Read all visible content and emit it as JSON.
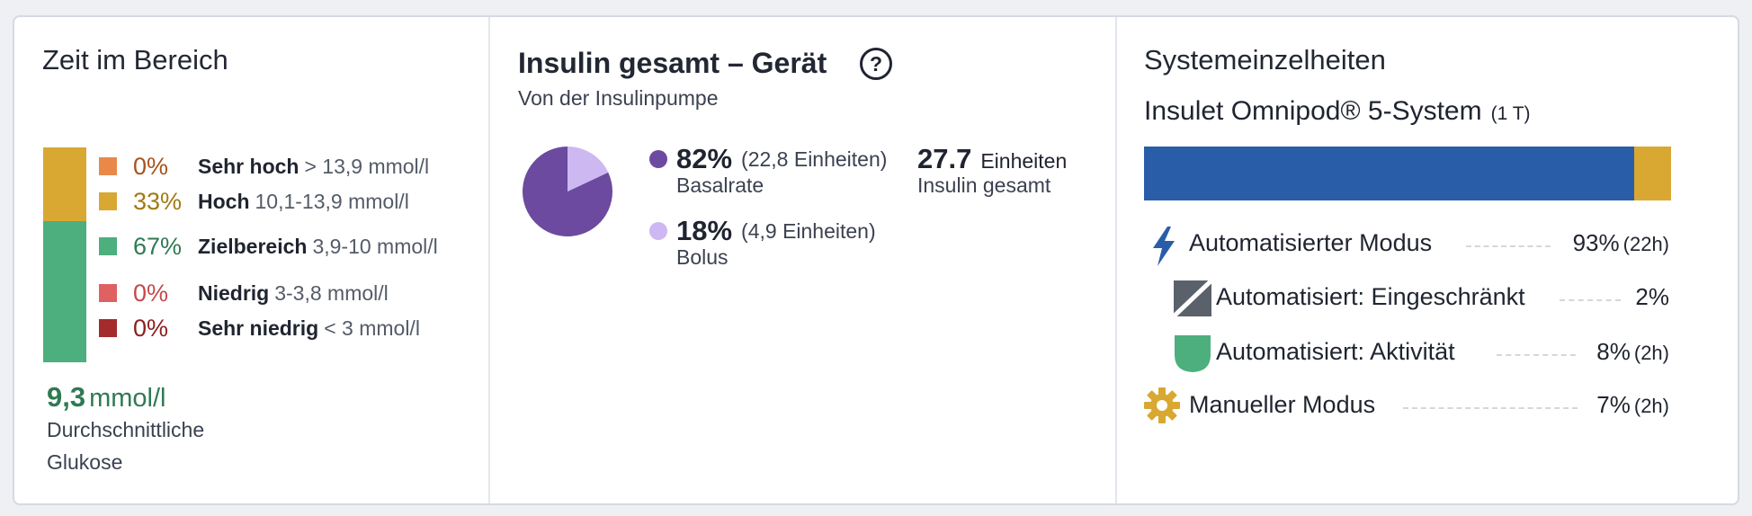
{
  "tir": {
    "title": "Zeit im Bereich",
    "rows": [
      {
        "pct": "0%",
        "label": "Sehr hoch",
        "range": "> 13,9 mmol/l",
        "color": "#e8894a",
        "text_color": "#a9521e"
      },
      {
        "pct": "33%",
        "label": "Hoch",
        "range": "10,1-13,9 mmol/l",
        "color": "#d9a832",
        "text_color": "#a27a12"
      },
      {
        "pct": "67%",
        "label": "Zielbereich",
        "range": "3,9-10 mmol/l",
        "color": "#4caf7d",
        "text_color": "#2f7a53"
      },
      {
        "pct": "0%",
        "label": "Niedrig",
        "range": "3-3,8 mmol/l",
        "color": "#e06161",
        "text_color": "#c44a4a"
      },
      {
        "pct": "0%",
        "label": "Sehr niedrig",
        "range": "< 3 mmol/l",
        "color": "#a32b2b",
        "text_color": "#8b1f1f"
      }
    ],
    "avg_value": "9,3",
    "avg_unit": "mmol/l",
    "avg_caption_1": "Durchschnittliche",
    "avg_caption_2": "Glukose"
  },
  "insulin": {
    "title": "Insulin gesamt – Gerät",
    "subtitle": "Von der Insulinpumpe",
    "help_glyph": "?",
    "basal": {
      "pct": "82%",
      "units": "(22,8 Einheiten)",
      "label": "Basalrate",
      "color": "#6c4aa0"
    },
    "bolus": {
      "pct": "18%",
      "units": "(4,9 Einheiten)",
      "label": "Bolus",
      "color": "#cdb8f2"
    },
    "total_value": "27.7",
    "total_unit": "Einheiten",
    "total_label": "Insulin gesamt"
  },
  "chart_data": {
    "type": "pie",
    "categories": [
      "Basalrate",
      "Bolus"
    ],
    "values": [
      82,
      18
    ],
    "title": ""
  },
  "system": {
    "title": "Systemeinzelheiten",
    "device": "Insulet Omnipod® 5-System",
    "days": "(1 T)",
    "bar": {
      "auto_fraction": 0.93,
      "auto_color": "#2a5da8",
      "manual_color": "#d9a832"
    },
    "modes": [
      {
        "icon": "lightning-bolt-icon",
        "label": "Automatisierter Modus",
        "pct": "93%",
        "hours": "(22h)"
      },
      {
        "icon": "limited-square-icon",
        "label": "Automatisiert: Eingeschränkt",
        "pct": "2%",
        "hours": ""
      },
      {
        "icon": "shield-icon",
        "label": "Automatisiert: Aktivität",
        "pct": "8%",
        "hours": "(2h)"
      },
      {
        "icon": "gear-icon",
        "label": "Manueller Modus",
        "pct": "7%",
        "hours": "(2h)"
      }
    ]
  }
}
